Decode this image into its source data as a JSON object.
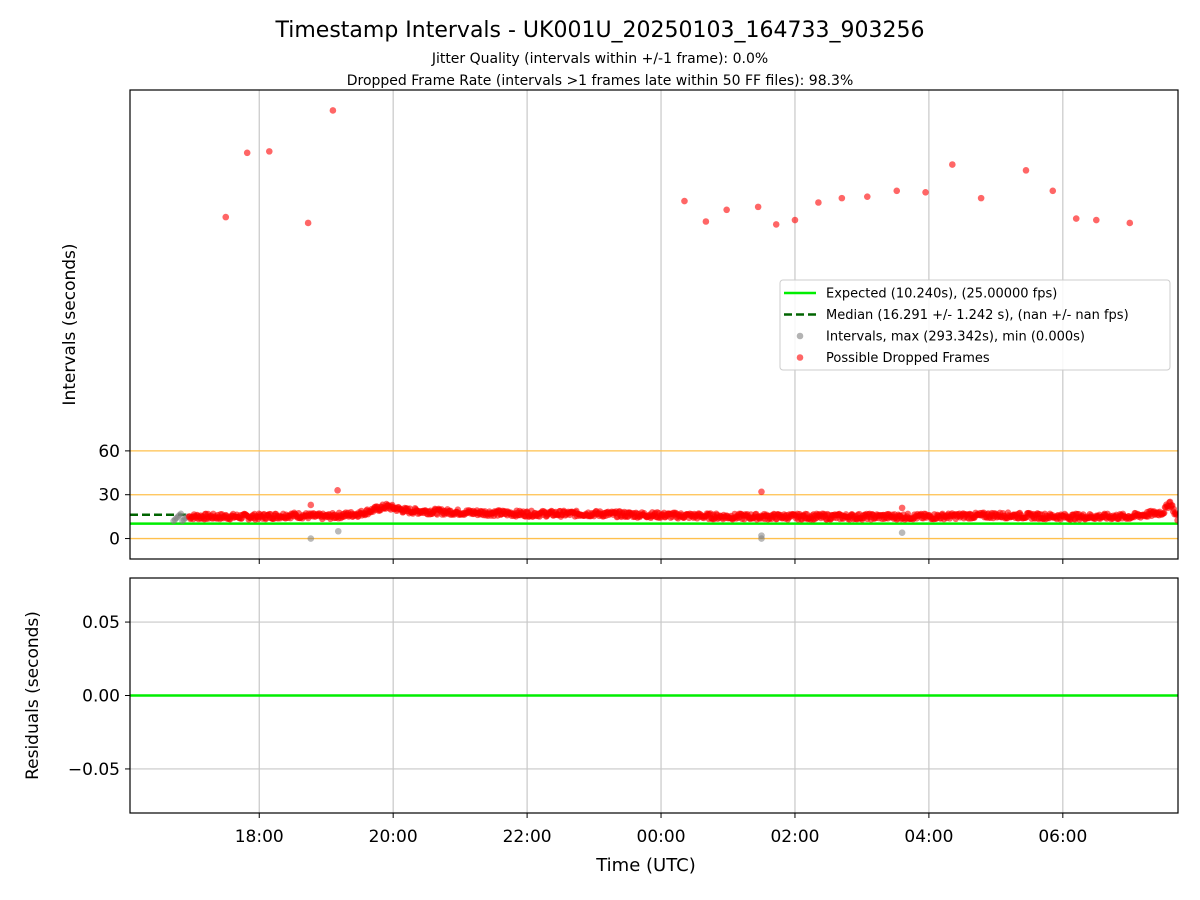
{
  "figure": {
    "title": "Timestamp Intervals - UK001U_20250103_164733_903256",
    "subtitle_line1": "Jitter Quality (intervals within +/-1 frame): 0.0%",
    "subtitle_line2": "Dropped Frame Rate (intervals >1 frames late within 50 FF files): 98.3%"
  },
  "colors": {
    "expected": "#00ee00",
    "median": "#006400",
    "intervals": "#808080",
    "dropped": "#ff0000",
    "threshold": "#ffc04d",
    "grid": "#c8c8c8",
    "axis": "#000000"
  },
  "chart_data": [
    {
      "type": "scatter",
      "panel": "top",
      "ylabel": "Intervals (seconds)",
      "xlabel": "",
      "grid": "vertical",
      "xlim_hours": [
        16.07,
        31.72
      ],
      "ylim": [
        -14,
        307
      ],
      "x_ticks": [
        {
          "h": 18,
          "label": "18:00"
        },
        {
          "h": 20,
          "label": "20:00"
        },
        {
          "h": 22,
          "label": "22:00"
        },
        {
          "h": 24,
          "label": "00:00"
        },
        {
          "h": 26,
          "label": "02:00"
        },
        {
          "h": 28,
          "label": "04:00"
        },
        {
          "h": 30,
          "label": "06:00"
        }
      ],
      "y_ticks": [
        0,
        30,
        60
      ],
      "threshold_lines": [
        0,
        30,
        60
      ],
      "expected_interval": 10.24,
      "median_interval": 16.291,
      "median_segment_hours": [
        16.07,
        16.95
      ],
      "legend": {
        "placement": "center-right",
        "entries": [
          {
            "key": "expected",
            "label": "Expected (10.240s), (25.00000 fps)"
          },
          {
            "key": "median",
            "label": "Median (16.291 +/- 1.242 s), (nan +/- nan fps)"
          },
          {
            "key": "intervals",
            "label": "Intervals, max (293.342s), min (0.000s)"
          },
          {
            "key": "dropped",
            "label": "Possible Dropped Frames"
          }
        ]
      },
      "dropped_outliers": [
        {
          "x": 17.5,
          "y": 220
        },
        {
          "x": 17.82,
          "y": 264
        },
        {
          "x": 18.15,
          "y": 265
        },
        {
          "x": 18.73,
          "y": 216
        },
        {
          "x": 19.1,
          "y": 293
        },
        {
          "x": 18.77,
          "y": 23
        },
        {
          "x": 19.17,
          "y": 33
        },
        {
          "x": 24.35,
          "y": 231
        },
        {
          "x": 24.67,
          "y": 217
        },
        {
          "x": 24.98,
          "y": 225
        },
        {
          "x": 25.45,
          "y": 227
        },
        {
          "x": 25.72,
          "y": 215
        },
        {
          "x": 26.0,
          "y": 218
        },
        {
          "x": 26.35,
          "y": 230
        },
        {
          "x": 26.7,
          "y": 233
        },
        {
          "x": 27.08,
          "y": 234
        },
        {
          "x": 27.52,
          "y": 238
        },
        {
          "x": 27.95,
          "y": 237
        },
        {
          "x": 28.35,
          "y": 256
        },
        {
          "x": 28.78,
          "y": 233
        },
        {
          "x": 29.45,
          "y": 252
        },
        {
          "x": 29.85,
          "y": 238
        },
        {
          "x": 30.2,
          "y": 219
        },
        {
          "x": 30.5,
          "y": 218
        },
        {
          "x": 31.0,
          "y": 216
        },
        {
          "x": 25.5,
          "y": 32
        },
        {
          "x": 27.6,
          "y": 21
        }
      ],
      "interval_outliers": [
        {
          "x": 18.77,
          "y": 0
        },
        {
          "x": 19.18,
          "y": 5
        },
        {
          "x": 25.5,
          "y": 0
        },
        {
          "x": 25.5,
          "y": 2
        },
        {
          "x": 27.6,
          "y": 4
        }
      ],
      "dropped_band_profile": [
        {
          "x": 16.95,
          "y": 15
        },
        {
          "x": 17.5,
          "y": 15
        },
        {
          "x": 18.0,
          "y": 15
        },
        {
          "x": 18.5,
          "y": 16
        },
        {
          "x": 19.0,
          "y": 15
        },
        {
          "x": 19.5,
          "y": 17
        },
        {
          "x": 19.9,
          "y": 22
        },
        {
          "x": 20.2,
          "y": 19
        },
        {
          "x": 21.0,
          "y": 18
        },
        {
          "x": 22.0,
          "y": 17
        },
        {
          "x": 23.0,
          "y": 17
        },
        {
          "x": 24.0,
          "y": 16
        },
        {
          "x": 25.0,
          "y": 15
        },
        {
          "x": 26.0,
          "y": 15
        },
        {
          "x": 27.0,
          "y": 15
        },
        {
          "x": 28.0,
          "y": 15
        },
        {
          "x": 29.0,
          "y": 16
        },
        {
          "x": 30.0,
          "y": 15
        },
        {
          "x": 31.0,
          "y": 15
        },
        {
          "x": 31.5,
          "y": 18
        },
        {
          "x": 31.6,
          "y": 25
        },
        {
          "x": 31.72,
          "y": 13
        }
      ]
    },
    {
      "type": "line",
      "panel": "bottom",
      "ylabel": "Residuals (seconds)",
      "xlabel": "Time (UTC)",
      "grid": "both",
      "xlim_hours": [
        16.07,
        31.72
      ],
      "ylim": [
        -0.08,
        0.08
      ],
      "y_ticks": [
        {
          "v": 0.05,
          "label": "0.05"
        },
        {
          "v": 0.0,
          "label": "0.00"
        },
        {
          "v": -0.05,
          "label": "−0.05"
        }
      ],
      "x_ticks": [
        {
          "h": 18,
          "label": "18:00"
        },
        {
          "h": 20,
          "label": "20:00"
        },
        {
          "h": 22,
          "label": "22:00"
        },
        {
          "h": 24,
          "label": "00:00"
        },
        {
          "h": 26,
          "label": "02:00"
        },
        {
          "h": 28,
          "label": "04:00"
        },
        {
          "h": 30,
          "label": "06:00"
        }
      ],
      "residual_value": 0.0
    }
  ]
}
